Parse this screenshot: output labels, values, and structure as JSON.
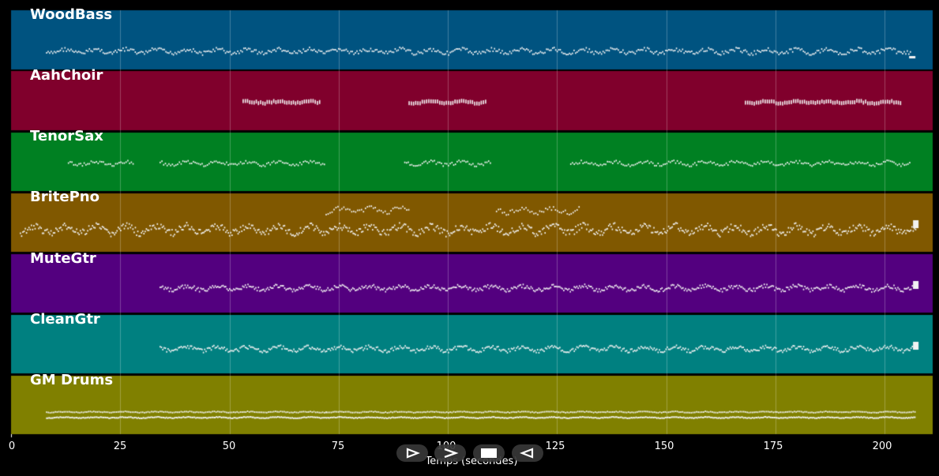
{
  "tracks": [
    {
      "name": "WoodBass",
      "color": "#005380"
    },
    {
      "name": "AahChoir",
      "color": "#80002c"
    },
    {
      "name": "TenorSax",
      "color": "#008022"
    },
    {
      "name": "BritePno",
      "color": "#805800"
    },
    {
      "name": "MuteGtr",
      "color": "#53007f"
    },
    {
      "name": "CleanGtr",
      "color": "#008080"
    },
    {
      "name": "GM Drums",
      "color": "#808000"
    }
  ],
  "x_axis": {
    "title": "Temps (secondes)",
    "ticks": [
      "0",
      "25",
      "50",
      "75",
      "100",
      "125",
      "150",
      "175",
      "200"
    ],
    "range": [
      0,
      211
    ]
  },
  "controls": [
    {
      "name": "play-forward-button",
      "icon": "play-outline-icon"
    },
    {
      "name": "next-button",
      "icon": "chevron-right-icon"
    },
    {
      "name": "stop-button",
      "icon": "stop-square-icon"
    },
    {
      "name": "rewind-button",
      "icon": "play-reverse-icon"
    }
  ],
  "grid": true
}
